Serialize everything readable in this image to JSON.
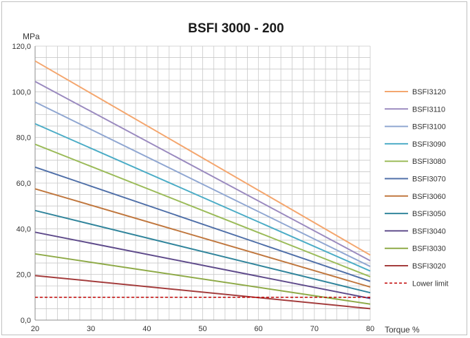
{
  "chart_data": {
    "type": "line",
    "title": "BSFI 3000 - 200",
    "xlabel": "Torque %",
    "ylabel": "MPa",
    "xlim": [
      20,
      80
    ],
    "ylim": [
      0,
      120
    ],
    "x_ticks": [
      20,
      30,
      40,
      50,
      60,
      70,
      80
    ],
    "y_ticks": [
      "0,0",
      "20,0",
      "40,0",
      "60,0",
      "80,0",
      "100,0",
      "120,0"
    ],
    "grid": true,
    "legend_position": "right",
    "x": [
      20,
      80
    ],
    "series": [
      {
        "name": "BSFI3120",
        "values": [
          113.5,
          28.5
        ],
        "color": "#F4A66E"
      },
      {
        "name": "BSFI3110",
        "values": [
          104.5,
          26.0
        ],
        "color": "#9A8ABF"
      },
      {
        "name": "BSFI3100",
        "values": [
          95.5,
          23.5
        ],
        "color": "#8FA6D1"
      },
      {
        "name": "BSFI3090",
        "values": [
          86.0,
          21.5
        ],
        "color": "#4BACC6"
      },
      {
        "name": "BSFI3080",
        "values": [
          77.0,
          19.0
        ],
        "color": "#9BBB59"
      },
      {
        "name": "BSFI3070",
        "values": [
          67.0,
          17.0
        ],
        "color": "#4F6FA8"
      },
      {
        "name": "BSFI3060",
        "values": [
          57.5,
          14.5
        ],
        "color": "#C0773E"
      },
      {
        "name": "BSFI3050",
        "values": [
          48.0,
          12.0
        ],
        "color": "#31859C"
      },
      {
        "name": "BSFI3040",
        "values": [
          38.5,
          9.5
        ],
        "color": "#5F4B8B"
      },
      {
        "name": "BSFI3030",
        "values": [
          29.0,
          7.0
        ],
        "color": "#8EAA47"
      },
      {
        "name": "BSFI3020",
        "values": [
          19.5,
          5.0
        ],
        "color": "#A33B3B"
      }
    ],
    "lower_limit": {
      "name": "Lower limit",
      "value": 10,
      "color": "#C00000"
    }
  }
}
